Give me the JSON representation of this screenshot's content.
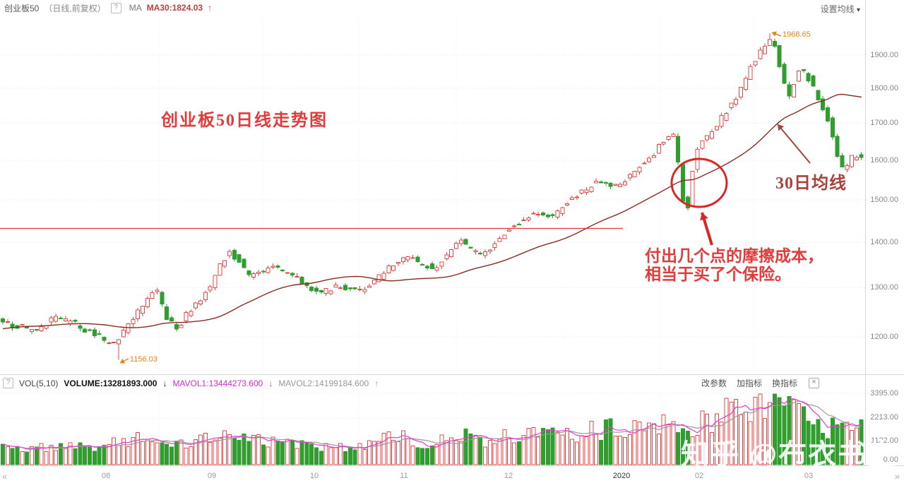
{
  "header": {
    "title": "创业板50",
    "subtitle": "（日线,前复权）",
    "help_icon": "?",
    "ma_group_label": "MA",
    "ma30_value": "MA30:1824.03",
    "ma30_arrow": "↑",
    "settings_label": "设置均线",
    "settings_caret": "▾"
  },
  "price_axis": {
    "labels": [
      "1900.00",
      "1800.00",
      "1700.00",
      "1600.00",
      "1500.00",
      "1400.00",
      "1300.00",
      "1200.00"
    ]
  },
  "volume_axis": {
    "labels": [
      "3395.00",
      "2213.00",
      "1122.00",
      "0.00"
    ]
  },
  "time_axis": {
    "prev_icon": "«",
    "next_icon": "»",
    "ticks": [
      "08",
      "09",
      "10",
      "11",
      "12",
      "2020",
      "02",
      "03"
    ]
  },
  "volume_header": {
    "help_icon": "?",
    "indicator": "VOL(5,10)",
    "volume_value": "VOLUME:13281893.000",
    "volume_arrow": "↓",
    "mavol1_value": "MAVOL1:13444273.600",
    "mavol1_arrow": "↓",
    "mavol2_value": "MAVOL2:14199184.600",
    "mavol2_arrow": "↑",
    "actions": [
      "改参数",
      "加指标",
      "换指标"
    ],
    "close_icon": "×"
  },
  "annotations": {
    "chart_title": "创业板50日线走势图",
    "ma_line_label": "30日均线",
    "note_line1": "付出几个点的摩擦成本，",
    "note_line2": "相当于买了个保险。",
    "high_label": "1968.65",
    "low_label": "1156.03"
  },
  "watermark": {
    "text": "知乎 @布衣书生"
  },
  "chart_data": {
    "type": "candlestick",
    "symbol": "创业板50",
    "period": "日线",
    "adjustment": "前复权",
    "ma30_last": 1824.03,
    "high_point": 1968.65,
    "low_point": 1156.03,
    "volume_last": 13281893.0,
    "mavol1_last": 13444273.6,
    "mavol2_last": 14199184.6,
    "log_scale": true,
    "price_axis_values": [
      1900,
      1800,
      1700,
      1600,
      1500,
      1400,
      1300,
      1200
    ],
    "volume_axis_values": [
      3395,
      2213,
      1122,
      0
    ],
    "resistance_price": 1432,
    "months": [
      "08",
      "09",
      "10",
      "11",
      "12",
      "2020",
      "02",
      "03"
    ],
    "month_x": [
      150,
      300,
      445,
      572,
      720,
      880,
      990,
      1145
    ],
    "colors": {
      "up": "#e04848",
      "down": "#2f9e2f",
      "ma30": "#8a2b22",
      "resistance": "#e23030",
      "annotation_red": "#dd2424",
      "ma_label": "#a8423a",
      "orange": "#e8821e",
      "mavol1": "#e03ad0",
      "mavol2": "#9a9a9a",
      "grid": "#e3e3e3",
      "frame": "#d8d8d8"
    },
    "price_path": [
      [
        -200,
        1192
      ],
      [
        -60,
        1226
      ],
      [
        0,
        1232
      ],
      [
        30,
        1221
      ],
      [
        55,
        1213
      ],
      [
        85,
        1237
      ],
      [
        110,
        1227
      ],
      [
        130,
        1211
      ],
      [
        148,
        1200
      ],
      [
        163,
        1180
      ],
      [
        178,
        1205
      ],
      [
        195,
        1240
      ],
      [
        212,
        1270
      ],
      [
        228,
        1296
      ],
      [
        242,
        1238
      ],
      [
        258,
        1215
      ],
      [
        272,
        1248
      ],
      [
        288,
        1270
      ],
      [
        305,
        1305
      ],
      [
        318,
        1350
      ],
      [
        333,
        1378
      ],
      [
        348,
        1352
      ],
      [
        362,
        1322
      ],
      [
        378,
        1338
      ],
      [
        395,
        1342
      ],
      [
        412,
        1330
      ],
      [
        428,
        1318
      ],
      [
        442,
        1302
      ],
      [
        458,
        1288
      ],
      [
        472,
        1295
      ],
      [
        488,
        1303
      ],
      [
        505,
        1298
      ],
      [
        520,
        1296
      ],
      [
        535,
        1310
      ],
      [
        550,
        1330
      ],
      [
        565,
        1352
      ],
      [
        578,
        1366
      ],
      [
        592,
        1360
      ],
      [
        606,
        1352
      ],
      [
        620,
        1340
      ],
      [
        634,
        1362
      ],
      [
        648,
        1390
      ],
      [
        660,
        1406
      ],
      [
        672,
        1385
      ],
      [
        686,
        1374
      ],
      [
        700,
        1386
      ],
      [
        712,
        1402
      ],
      [
        724,
        1424
      ],
      [
        738,
        1442
      ],
      [
        752,
        1460
      ],
      [
        766,
        1465
      ],
      [
        780,
        1455
      ],
      [
        794,
        1470
      ],
      [
        808,
        1492
      ],
      [
        822,
        1512
      ],
      [
        836,
        1526
      ],
      [
        850,
        1544
      ],
      [
        862,
        1552
      ],
      [
        872,
        1530
      ],
      [
        882,
        1540
      ],
      [
        892,
        1552
      ],
      [
        904,
        1572
      ],
      [
        916,
        1592
      ],
      [
        928,
        1608
      ],
      [
        940,
        1636
      ],
      [
        952,
        1660
      ],
      [
        962,
        1662
      ],
      [
        970,
        1548
      ],
      [
        977,
        1463
      ],
      [
        984,
        1510
      ],
      [
        991,
        1628
      ],
      [
        1000,
        1648
      ],
      [
        1010,
        1662
      ],
      [
        1020,
        1690
      ],
      [
        1030,
        1718
      ],
      [
        1040,
        1750
      ],
      [
        1050,
        1775
      ],
      [
        1060,
        1822
      ],
      [
        1070,
        1862
      ],
      [
        1080,
        1900
      ],
      [
        1088,
        1928
      ],
      [
        1095,
        1952
      ],
      [
        1101,
        1938
      ],
      [
        1107,
        1902
      ],
      [
        1113,
        1852
      ],
      [
        1119,
        1788
      ],
      [
        1125,
        1768
      ],
      [
        1131,
        1812
      ],
      [
        1137,
        1846
      ],
      [
        1143,
        1856
      ],
      [
        1149,
        1838
      ],
      [
        1155,
        1812
      ],
      [
        1161,
        1788
      ],
      [
        1167,
        1756
      ],
      [
        1173,
        1740
      ],
      [
        1179,
        1706
      ],
      [
        1185,
        1662
      ],
      [
        1191,
        1622
      ],
      [
        1197,
        1586
      ],
      [
        1203,
        1568
      ],
      [
        1209,
        1596
      ],
      [
        1215,
        1612
      ],
      [
        1222,
        1606
      ]
    ],
    "volume_path": [
      [
        -200,
        750
      ],
      [
        0,
        780
      ],
      [
        40,
        720
      ],
      [
        80,
        860
      ],
      [
        120,
        820
      ],
      [
        163,
        1020
      ],
      [
        200,
        1250
      ],
      [
        228,
        1420
      ],
      [
        256,
        980
      ],
      [
        290,
        1250
      ],
      [
        318,
        1520
      ],
      [
        348,
        1280
      ],
      [
        380,
        1000
      ],
      [
        410,
        1120
      ],
      [
        440,
        950
      ],
      [
        470,
        820
      ],
      [
        500,
        900
      ],
      [
        530,
        1050
      ],
      [
        565,
        1350
      ],
      [
        600,
        1050
      ],
      [
        634,
        1300
      ],
      [
        660,
        1450
      ],
      [
        690,
        1150
      ],
      [
        718,
        1350
      ],
      [
        750,
        1550
      ],
      [
        782,
        1350
      ],
      [
        815,
        1500
      ],
      [
        850,
        1650
      ],
      [
        880,
        1780
      ],
      [
        910,
        1560
      ],
      [
        935,
        1820
      ],
      [
        955,
        1950
      ],
      [
        970,
        1500
      ],
      [
        984,
        1900
      ],
      [
        1000,
        2050
      ],
      [
        1015,
        2200
      ],
      [
        1030,
        2750
      ],
      [
        1045,
        2550
      ],
      [
        1060,
        2700
      ],
      [
        1075,
        2900
      ],
      [
        1090,
        3250
      ],
      [
        1100,
        2950
      ],
      [
        1112,
        2520
      ],
      [
        1124,
        2780
      ],
      [
        1136,
        2600
      ],
      [
        1148,
        2300
      ],
      [
        1160,
        2050
      ],
      [
        1172,
        1780
      ],
      [
        1184,
        2250
      ],
      [
        1196,
        2380
      ],
      [
        1208,
        1650
      ],
      [
        1222,
        1950
      ]
    ]
  }
}
